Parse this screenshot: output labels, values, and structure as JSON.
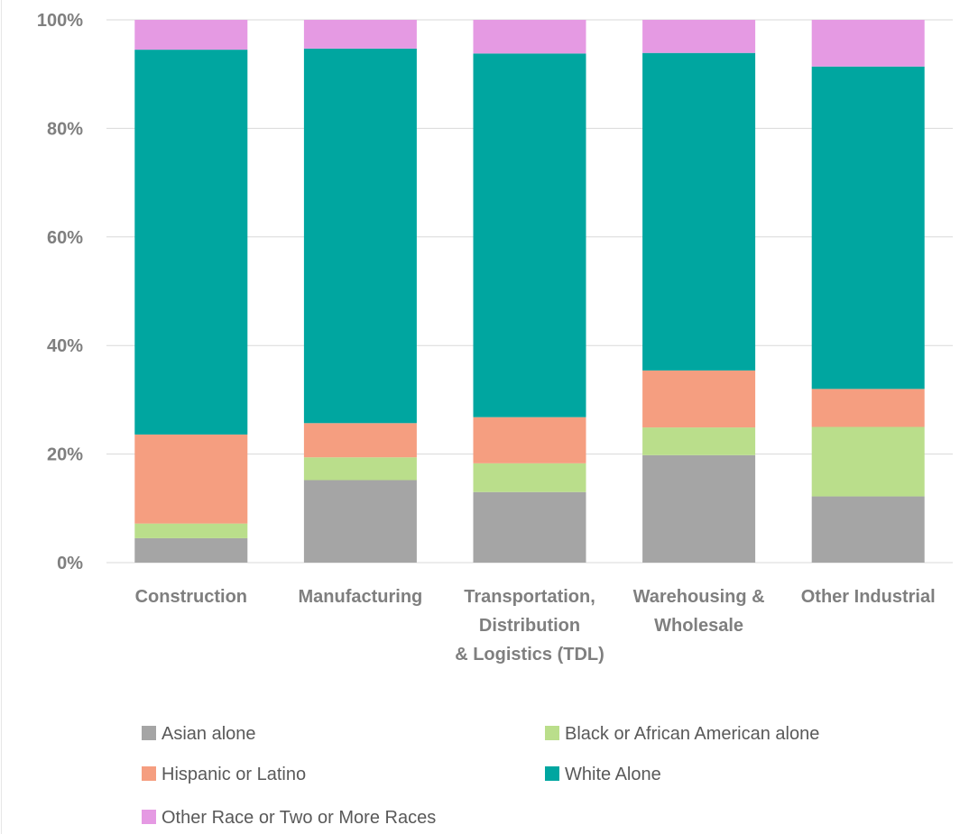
{
  "chart_data": {
    "type": "bar",
    "stacked": true,
    "percent": true,
    "categories": [
      [
        "Construction"
      ],
      [
        "Manufacturing"
      ],
      [
        "Transportation,",
        "Distribution",
        "& Logistics (TDL)"
      ],
      [
        "Warehousing &",
        "Wholesale"
      ],
      [
        "Other Industrial"
      ]
    ],
    "series": [
      {
        "name": "Asian alone",
        "color": "#a5a5a5",
        "values": [
          4.5,
          15.2,
          13.0,
          19.8,
          12.2
        ]
      },
      {
        "name": "Black or African American alone",
        "color": "#bade8b",
        "values": [
          2.7,
          4.2,
          5.3,
          5.1,
          12.8
        ]
      },
      {
        "name": "Hispanic or Latino",
        "color": "#f59e80",
        "values": [
          16.4,
          6.3,
          8.5,
          10.5,
          7.0
        ]
      },
      {
        "name": "White Alone",
        "color": "#00a6a0",
        "values": [
          70.9,
          69.0,
          67.0,
          58.5,
          59.4
        ]
      },
      {
        "name": "Other Race or Two or More Races",
        "color": "#e59ae3",
        "values": [
          5.5,
          5.3,
          6.2,
          6.1,
          8.6
        ]
      }
    ],
    "yticks": [
      "0%",
      "20%",
      "40%",
      "60%",
      "80%",
      "100%"
    ],
    "ylim": [
      0,
      100
    ],
    "grid": true,
    "legend_position": "bottom"
  }
}
